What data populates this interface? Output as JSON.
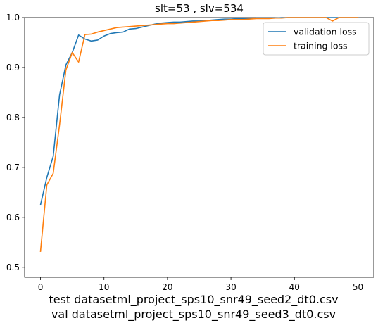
{
  "chart_data": {
    "type": "line",
    "title": "slt=53 , slv=534",
    "xlabel": "",
    "ylabel": "",
    "xlim": [
      -2.5,
      52.5
    ],
    "ylim": [
      0.48,
      1.0
    ],
    "xticks": [
      0,
      10,
      20,
      30,
      40,
      50
    ],
    "yticks": [
      0.5,
      0.6,
      0.7,
      0.8,
      0.9,
      1.0
    ],
    "xtick_labels": [
      "0",
      "10",
      "20",
      "30",
      "40",
      "50"
    ],
    "ytick_labels": [
      "0.5",
      "0.6",
      "0.7",
      "0.8",
      "0.9",
      "1.0"
    ],
    "legend_position": "top-right",
    "series": [
      {
        "name": "validation loss",
        "color": "#1f77b4",
        "x": [
          0,
          1,
          2,
          3,
          4,
          5,
          6,
          7,
          8,
          9,
          10,
          11,
          12,
          13,
          14,
          15,
          16,
          17,
          18,
          19,
          20,
          21,
          22,
          23,
          24,
          25,
          26,
          27,
          28,
          29,
          30,
          31,
          32,
          33,
          34,
          35,
          36,
          37,
          38,
          39,
          40,
          41,
          42,
          43,
          44,
          45,
          46,
          47,
          48,
          49,
          50
        ],
        "y": [
          0.625,
          0.68,
          0.722,
          0.845,
          0.905,
          0.93,
          0.965,
          0.957,
          0.953,
          0.955,
          0.963,
          0.968,
          0.97,
          0.971,
          0.977,
          0.978,
          0.981,
          0.984,
          0.987,
          0.989,
          0.99,
          0.991,
          0.991,
          0.992,
          0.993,
          0.993,
          0.994,
          0.995,
          0.996,
          0.997,
          0.997,
          0.998,
          0.998,
          0.998,
          0.999,
          0.999,
          0.999,
          0.999,
          1.0,
          1.0,
          1.0,
          1.0,
          1.0,
          1.0,
          1.0,
          1.0,
          1.0,
          1.0,
          1.0,
          1.0,
          1.0
        ]
      },
      {
        "name": "training loss",
        "color": "#ff7f0e",
        "x": [
          0,
          1,
          2,
          3,
          4,
          5,
          6,
          7,
          8,
          9,
          10,
          11,
          12,
          13,
          14,
          15,
          16,
          17,
          18,
          19,
          20,
          21,
          22,
          23,
          24,
          25,
          26,
          27,
          28,
          29,
          30,
          31,
          32,
          33,
          34,
          35,
          36,
          37,
          38,
          39,
          40,
          41,
          42,
          43,
          44,
          45,
          46,
          47,
          48,
          49,
          50
        ],
        "y": [
          0.532,
          0.665,
          0.688,
          0.785,
          0.895,
          0.93,
          0.911,
          0.966,
          0.967,
          0.971,
          0.974,
          0.977,
          0.98,
          0.981,
          0.982,
          0.983,
          0.984,
          0.985,
          0.986,
          0.987,
          0.988,
          0.988,
          0.989,
          0.99,
          0.991,
          0.992,
          0.993,
          0.994,
          0.994,
          0.995,
          0.996,
          0.996,
          0.996,
          0.997,
          0.998,
          0.998,
          0.998,
          0.999,
          0.999,
          1.0,
          1.0,
          1.0,
          1.0,
          1.0,
          1.0,
          1.0,
          0.993,
          1.0,
          1.0,
          1.0,
          1.0
        ]
      }
    ],
    "caption_lines": [
      "test datasetml_project_sps10_snr49_seed2_dt0.csv",
      "val datasetml_project_sps10_snr49_seed3_dt0.csv"
    ]
  }
}
